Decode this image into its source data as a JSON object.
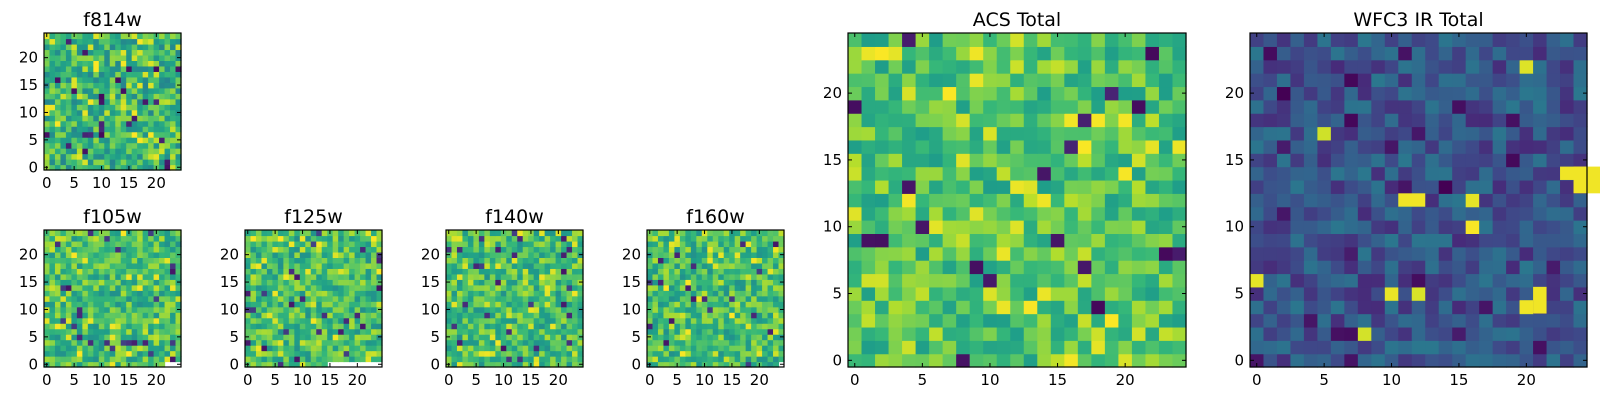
{
  "chart_data": [
    {
      "type": "heatmap",
      "title": "f814w",
      "xticks": [
        "0",
        "5",
        "10",
        "15",
        "20"
      ],
      "yticks": [
        "0",
        "5",
        "10",
        "15",
        "20"
      ],
      "grid_size": [
        24,
        24
      ],
      "colormap": "viridis",
      "covered_fraction": 1.0
    },
    {
      "type": "heatmap",
      "title": "f105w",
      "xticks": [
        "0",
        "5",
        "10",
        "15",
        "20"
      ],
      "yticks": [
        "0",
        "5",
        "10",
        "15",
        "20"
      ],
      "grid_size": [
        24,
        24
      ],
      "colormap": "viridis",
      "covered_fraction": 0.88
    },
    {
      "type": "heatmap",
      "title": "f125w",
      "xticks": [
        "0",
        "5",
        "10",
        "15",
        "20"
      ],
      "yticks": [
        "0",
        "5",
        "10",
        "15",
        "20"
      ],
      "grid_size": [
        24,
        24
      ],
      "colormap": "viridis",
      "covered_fraction": 0.6
    },
    {
      "type": "heatmap",
      "title": "f140w",
      "xticks": [
        "0",
        "5",
        "10",
        "15",
        "20"
      ],
      "yticks": [
        "0",
        "5",
        "10",
        "15",
        "20"
      ],
      "grid_size": [
        24,
        24
      ],
      "colormap": "viridis",
      "covered_fraction": 1.0
    },
    {
      "type": "heatmap",
      "title": "f160w",
      "xticks": [
        "0",
        "5",
        "10",
        "15",
        "20"
      ],
      "yticks": [
        "0",
        "5",
        "10",
        "15",
        "20"
      ],
      "grid_size": [
        24,
        24
      ],
      "colormap": "viridis",
      "covered_fraction": 0.96
    },
    {
      "type": "heatmap",
      "title": "ACS Total",
      "xticks": [
        "0",
        "5",
        "10",
        "15",
        "20"
      ],
      "yticks": [
        "0",
        "5",
        "10",
        "15",
        "20"
      ],
      "grid_size": [
        24,
        24
      ],
      "colormap": "viridis",
      "covered_fraction": 1.0
    },
    {
      "type": "heatmap",
      "title": "WFC3 IR Total",
      "xticks": [
        "0",
        "5",
        "10",
        "15",
        "20"
      ],
      "yticks": [
        "0",
        "5",
        "10",
        "15",
        "20"
      ],
      "grid_size": [
        24,
        24
      ],
      "colormap": "viridis",
      "covered_fraction": 1.0
    }
  ]
}
